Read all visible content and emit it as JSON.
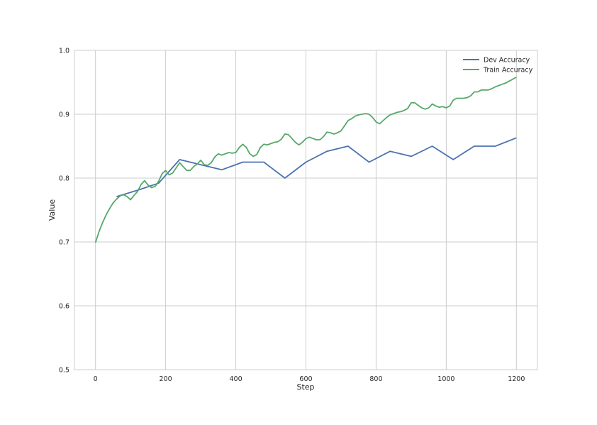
{
  "chart_data": {
    "type": "line",
    "title": "",
    "xlabel": "Step",
    "ylabel": "Value",
    "xlim": [
      -60,
      1260
    ],
    "ylim": [
      0.5,
      1.0
    ],
    "x_ticks": [
      0,
      200,
      400,
      600,
      800,
      1000,
      1200
    ],
    "y_ticks": [
      0.5,
      0.6,
      0.7,
      0.8,
      0.9,
      1.0
    ],
    "x_tick_labels": [
      "0",
      "200",
      "400",
      "600",
      "800",
      "1000",
      "1200"
    ],
    "y_tick_labels": [
      "0.5",
      "0.6",
      "0.7",
      "0.8",
      "0.9",
      "1.0"
    ],
    "grid": true,
    "legend_position": "top-right",
    "series": [
      {
        "name": "Dev Accuracy",
        "color": "#4c72b0",
        "x": [
          60,
          120,
          180,
          240,
          300,
          360,
          420,
          480,
          540,
          600,
          660,
          720,
          780,
          840,
          900,
          960,
          1020,
          1080,
          1140,
          1200
        ],
        "y": [
          0.771,
          0.781,
          0.792,
          0.829,
          0.821,
          0.813,
          0.825,
          0.825,
          0.8,
          0.825,
          0.842,
          0.85,
          0.825,
          0.842,
          0.834,
          0.85,
          0.829,
          0.85,
          0.85,
          0.863
        ]
      },
      {
        "name": "Train Accuracy",
        "color": "#55a868",
        "x": [
          0,
          10,
          20,
          30,
          40,
          50,
          60,
          70,
          80,
          90,
          100,
          110,
          120,
          130,
          140,
          150,
          160,
          170,
          180,
          190,
          200,
          210,
          220,
          230,
          240,
          250,
          260,
          270,
          280,
          290,
          300,
          310,
          320,
          330,
          340,
          350,
          360,
          370,
          380,
          390,
          400,
          410,
          420,
          430,
          440,
          450,
          460,
          470,
          480,
          490,
          500,
          510,
          520,
          530,
          540,
          550,
          560,
          570,
          580,
          590,
          600,
          610,
          620,
          630,
          640,
          650,
          660,
          670,
          680,
          690,
          700,
          710,
          720,
          730,
          740,
          750,
          760,
          770,
          780,
          790,
          800,
          810,
          820,
          830,
          840,
          850,
          860,
          870,
          880,
          890,
          900,
          910,
          920,
          930,
          940,
          950,
          960,
          970,
          980,
          990,
          1000,
          1010,
          1020,
          1030,
          1040,
          1050,
          1060,
          1070,
          1080,
          1090,
          1100,
          1110,
          1120,
          1130,
          1140,
          1150,
          1160,
          1170,
          1180,
          1190,
          1200
        ],
        "y": [
          0.699,
          0.716,
          0.73,
          0.742,
          0.752,
          0.761,
          0.767,
          0.772,
          0.774,
          0.771,
          0.766,
          0.773,
          0.779,
          0.79,
          0.796,
          0.789,
          0.785,
          0.787,
          0.795,
          0.807,
          0.812,
          0.805,
          0.808,
          0.816,
          0.824,
          0.818,
          0.812,
          0.812,
          0.818,
          0.822,
          0.828,
          0.821,
          0.82,
          0.824,
          0.833,
          0.838,
          0.836,
          0.838,
          0.84,
          0.839,
          0.84,
          0.848,
          0.853,
          0.848,
          0.838,
          0.834,
          0.837,
          0.848,
          0.853,
          0.852,
          0.854,
          0.856,
          0.857,
          0.861,
          0.869,
          0.868,
          0.862,
          0.856,
          0.852,
          0.856,
          0.862,
          0.864,
          0.862,
          0.86,
          0.86,
          0.865,
          0.872,
          0.871,
          0.869,
          0.871,
          0.874,
          0.882,
          0.89,
          0.893,
          0.897,
          0.899,
          0.9,
          0.901,
          0.9,
          0.895,
          0.888,
          0.885,
          0.89,
          0.895,
          0.899,
          0.901,
          0.903,
          0.904,
          0.906,
          0.909,
          0.918,
          0.918,
          0.914,
          0.91,
          0.908,
          0.91,
          0.916,
          0.913,
          0.911,
          0.912,
          0.91,
          0.913,
          0.922,
          0.925,
          0.925,
          0.925,
          0.926,
          0.929,
          0.935,
          0.935,
          0.938,
          0.938,
          0.938,
          0.94,
          0.943,
          0.945,
          0.947,
          0.949,
          0.952,
          0.955,
          0.958
        ]
      }
    ]
  }
}
